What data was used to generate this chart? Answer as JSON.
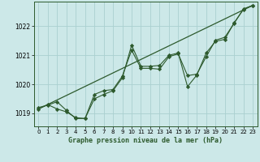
{
  "title": "Graphe pression niveau de la mer (hPa)",
  "bg_color": "#cce8e8",
  "grid_color": "#aad0d0",
  "line_color": "#2d5a2d",
  "marker_color": "#2d5a2d",
  "x_ticks": [
    0,
    1,
    2,
    3,
    4,
    5,
    6,
    7,
    8,
    9,
    10,
    11,
    12,
    13,
    14,
    15,
    16,
    17,
    18,
    19,
    20,
    21,
    22,
    23
  ],
  "y_ticks": [
    1019,
    1020,
    1021,
    1022
  ],
  "xlim": [
    -0.5,
    23.5
  ],
  "ylim": [
    1018.55,
    1022.85
  ],
  "series1_x": [
    0,
    1,
    2,
    3,
    4,
    5,
    6,
    7,
    8,
    9,
    10,
    11,
    12,
    13,
    14,
    15,
    16,
    17,
    18,
    19,
    20,
    21,
    22,
    23
  ],
  "series1_y": [
    1019.15,
    1019.3,
    1019.15,
    1019.05,
    1018.85,
    1018.82,
    1019.65,
    1019.78,
    1019.82,
    1020.28,
    1021.18,
    1020.55,
    1020.55,
    1020.52,
    1020.95,
    1021.05,
    1020.3,
    1020.35,
    1020.95,
    1021.52,
    1021.62,
    1022.1,
    1022.6,
    1022.72
  ],
  "series2_x": [
    0,
    1,
    2,
    3,
    4,
    5,
    6,
    7,
    8,
    9,
    10,
    11,
    12,
    13,
    14,
    15,
    16,
    17,
    18,
    19,
    20,
    21,
    22,
    23
  ],
  "series2_y": [
    1019.2,
    1019.28,
    1019.4,
    1019.1,
    1018.82,
    1018.82,
    1019.5,
    1019.65,
    1019.78,
    1020.22,
    1021.35,
    1020.62,
    1020.62,
    1020.65,
    1021.0,
    1021.08,
    1019.92,
    1020.32,
    1021.08,
    1021.48,
    1021.55,
    1022.12,
    1022.58,
    1022.72
  ],
  "trend_x": [
    0,
    23
  ],
  "trend_y": [
    1019.15,
    1022.72
  ]
}
